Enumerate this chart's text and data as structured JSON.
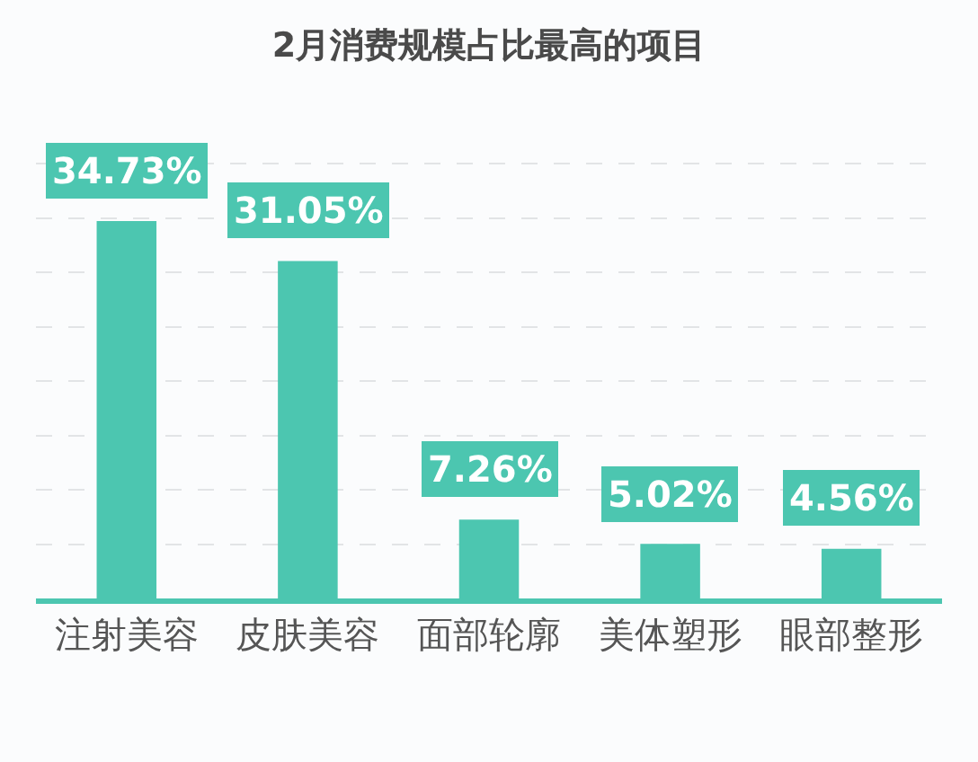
{
  "chart_data": {
    "type": "bar",
    "title": "2月消费规模占比最高的项目",
    "categories": [
      "注射美容",
      "皮肤美容",
      "面部轮廓",
      "美体塑形",
      "眼部整形"
    ],
    "values": [
      34.73,
      31.05,
      7.26,
      5.02,
      4.56
    ],
    "value_labels": [
      "34.73%",
      "31.05%",
      "7.26%",
      "5.02%",
      "4.56%"
    ],
    "color": "#4cc6b0",
    "grid": "y",
    "tick_labels": "x"
  }
}
